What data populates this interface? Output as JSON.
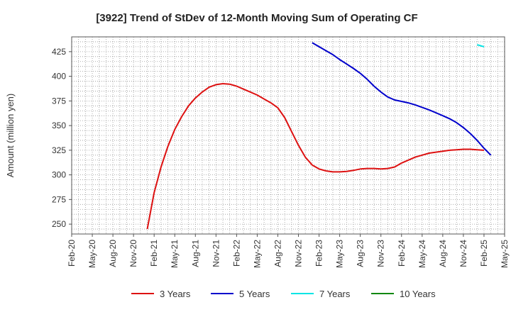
{
  "chart_data": {
    "type": "line",
    "title": "[3922]  Trend of StDev of 12-Month Moving Sum of Operating CF",
    "ylabel": "Amount (million yen)",
    "xlabel": "",
    "ylim": [
      240,
      440
    ],
    "yticks": [
      250,
      275,
      300,
      325,
      350,
      375,
      400,
      425
    ],
    "xlim": [
      "2020-02",
      "2025-05"
    ],
    "xticks": [
      "Feb-20",
      "May-20",
      "Aug-20",
      "Nov-20",
      "Feb-21",
      "May-21",
      "Aug-21",
      "Nov-21",
      "Feb-22",
      "May-22",
      "Aug-22",
      "Nov-22",
      "Feb-23",
      "May-23",
      "Aug-23",
      "Nov-23",
      "Feb-24",
      "May-24",
      "Aug-24",
      "Nov-24",
      "Feb-25",
      "May-25"
    ],
    "grid": true,
    "legend_position": "bottom",
    "series": [
      {
        "name": "3 Years",
        "color": "#dd1111",
        "points": [
          [
            "2021-01",
            245
          ],
          [
            "2021-02",
            282
          ],
          [
            "2021-03",
            308
          ],
          [
            "2021-04",
            329
          ],
          [
            "2021-05",
            346
          ],
          [
            "2021-06",
            359
          ],
          [
            "2021-07",
            370
          ],
          [
            "2021-08",
            378
          ],
          [
            "2021-09",
            384
          ],
          [
            "2021-10",
            389
          ],
          [
            "2021-11",
            391.5
          ],
          [
            "2021-12",
            392.5
          ],
          [
            "2022-01",
            392
          ],
          [
            "2022-02",
            390
          ],
          [
            "2022-03",
            387
          ],
          [
            "2022-04",
            384
          ],
          [
            "2022-05",
            381
          ],
          [
            "2022-06",
            377
          ],
          [
            "2022-07",
            373
          ],
          [
            "2022-08",
            368
          ],
          [
            "2022-09",
            358
          ],
          [
            "2022-10",
            344
          ],
          [
            "2022-11",
            330
          ],
          [
            "2022-12",
            318
          ],
          [
            "2023-01",
            310
          ],
          [
            "2023-02",
            306
          ],
          [
            "2023-03",
            304
          ],
          [
            "2023-04",
            303
          ],
          [
            "2023-05",
            303
          ],
          [
            "2023-06",
            303.5
          ],
          [
            "2023-07",
            304.5
          ],
          [
            "2023-08",
            306
          ],
          [
            "2023-09",
            306.5
          ],
          [
            "2023-10",
            306.5
          ],
          [
            "2023-11",
            306
          ],
          [
            "2023-12",
            306.5
          ],
          [
            "2024-01",
            308
          ],
          [
            "2024-02",
            312
          ],
          [
            "2024-03",
            315
          ],
          [
            "2024-04",
            318
          ],
          [
            "2024-05",
            320
          ],
          [
            "2024-06",
            322
          ],
          [
            "2024-07",
            323
          ],
          [
            "2024-08",
            324
          ],
          [
            "2024-09",
            325
          ],
          [
            "2024-10",
            325.5
          ],
          [
            "2024-11",
            326
          ],
          [
            "2024-12",
            326
          ],
          [
            "2025-01",
            325.5
          ],
          [
            "2025-02",
            325
          ]
        ]
      },
      {
        "name": "5 Years",
        "color": "#0000cc",
        "points": [
          [
            "2023-01",
            434
          ],
          [
            "2023-02",
            430
          ],
          [
            "2023-03",
            426
          ],
          [
            "2023-04",
            422
          ],
          [
            "2023-05",
            417
          ],
          [
            "2023-06",
            412.5
          ],
          [
            "2023-07",
            408
          ],
          [
            "2023-08",
            403
          ],
          [
            "2023-09",
            397
          ],
          [
            "2023-10",
            390
          ],
          [
            "2023-11",
            384
          ],
          [
            "2023-12",
            379
          ],
          [
            "2024-01",
            376
          ],
          [
            "2024-02",
            374.5
          ],
          [
            "2024-03",
            373
          ],
          [
            "2024-04",
            371
          ],
          [
            "2024-05",
            368.5
          ],
          [
            "2024-06",
            366
          ],
          [
            "2024-07",
            363
          ],
          [
            "2024-08",
            360
          ],
          [
            "2024-09",
            357
          ],
          [
            "2024-10",
            353
          ],
          [
            "2024-11",
            348
          ],
          [
            "2024-12",
            342
          ],
          [
            "2025-01",
            335
          ],
          [
            "2025-02",
            327
          ],
          [
            "2025-03",
            320
          ]
        ]
      },
      {
        "name": "7 Years",
        "color": "#00e5e5",
        "points": [
          [
            "2025-01",
            432
          ],
          [
            "2025-02",
            430
          ]
        ]
      },
      {
        "name": "10 Years",
        "color": "#118811",
        "points": []
      }
    ]
  }
}
